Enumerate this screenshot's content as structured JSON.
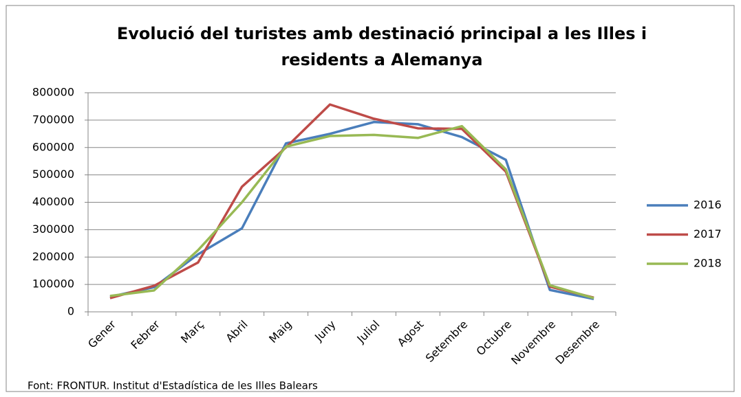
{
  "chart_data": {
    "type": "line",
    "title": "Evolució del turistes amb destinació principal a les Illes i residents a Alemanya",
    "source": "Font: FRONTUR. Institut d'Estadística de les Illes Balears",
    "categories": [
      "Gener",
      "Febrer",
      "Març",
      "Abril",
      "Maig",
      "Juny",
      "Juliol",
      "Agost",
      "Setembre",
      "Octubre",
      "Novembre",
      "Desembre"
    ],
    "series": [
      {
        "name": "2016",
        "color": "#4a7ebb",
        "values": [
          55000,
          90000,
          210000,
          305000,
          615000,
          650000,
          693000,
          685000,
          638000,
          555000,
          80000,
          47000
        ]
      },
      {
        "name": "2017",
        "color": "#be4b48",
        "values": [
          50000,
          95000,
          180000,
          457000,
          600000,
          757000,
          705000,
          670000,
          668000,
          512000,
          92000,
          52000
        ]
      },
      {
        "name": "2018",
        "color": "#98b954",
        "values": [
          58000,
          78000,
          225000,
          400000,
          603000,
          642000,
          646000,
          635000,
          678000,
          520000,
          97000,
          50000
        ]
      }
    ],
    "ylim": [
      0,
      800000
    ],
    "yticks": [
      0,
      100000,
      200000,
      300000,
      400000,
      500000,
      600000,
      700000,
      800000
    ],
    "grid": true,
    "legend": "right"
  }
}
